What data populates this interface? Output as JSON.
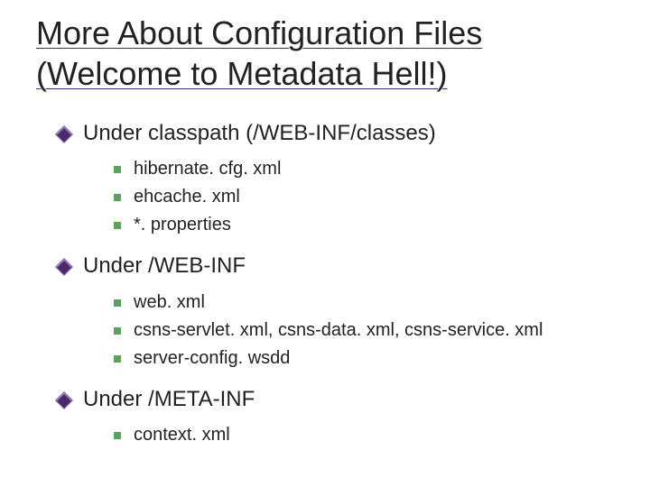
{
  "title_line1": "More About Configuration Files",
  "title_line2": "(Welcome to Metadata Hell!)",
  "colors": {
    "l1_bullet": "#4a2a6a",
    "l2_bullet": "#5aa35a",
    "text": "#222222",
    "background": "#ffffff",
    "underline": "#4a2a6a"
  },
  "typography": {
    "title_fontsize": 36,
    "l1_fontsize": 24,
    "l2_fontsize": 20,
    "font_family": "Verdana"
  },
  "sections": [
    {
      "label": "Under classpath (/WEB-INF/classes)",
      "items": [
        "hibernate. cfg. xml",
        "ehcache. xml",
        "*. properties"
      ]
    },
    {
      "label": "Under /WEB-INF",
      "items": [
        "web. xml",
        "csns-servlet. xml, csns-data. xml, csns-service. xml",
        "server-config. wsdd"
      ]
    },
    {
      "label": "Under /META-INF",
      "items": [
        "context. xml"
      ]
    }
  ]
}
